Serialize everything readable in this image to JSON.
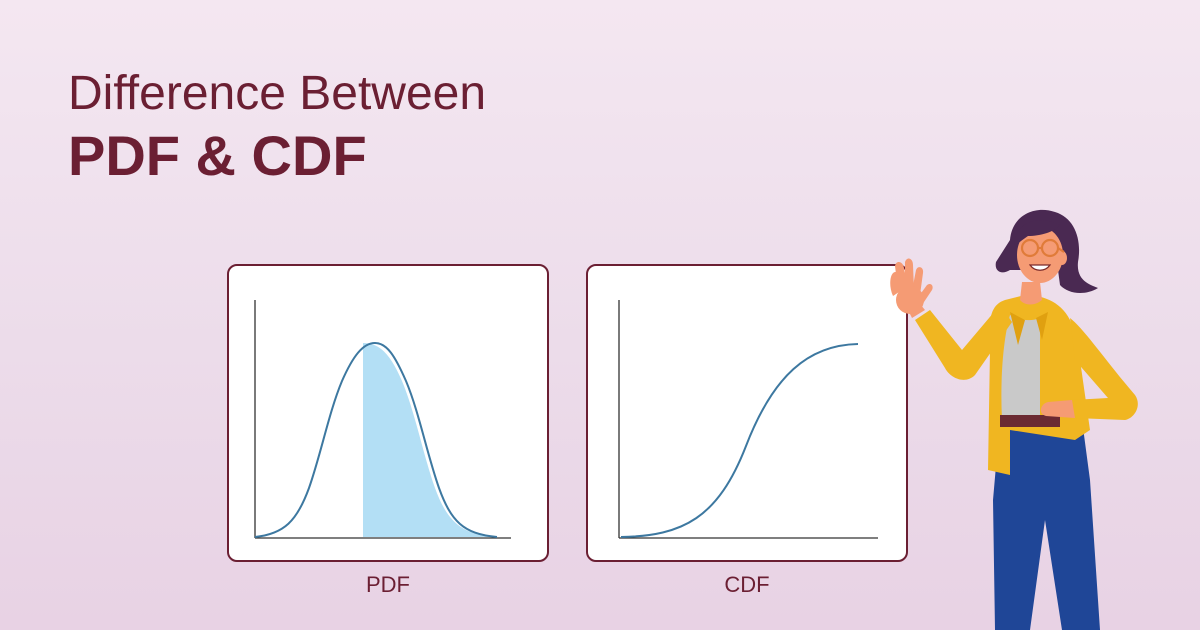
{
  "title": {
    "line1": "Difference Between",
    "line2": "PDF & CDF"
  },
  "figures": [
    {
      "caption": "PDF",
      "curve": "bell-curve",
      "shaded_region": "right half under curve",
      "fill_color": "#b3dff5",
      "line_color": "#3d78a0"
    },
    {
      "caption": "CDF",
      "curve": "s-curve",
      "line_color": "#3d78a0"
    }
  ],
  "illustration": {
    "subject": "woman presenter waving",
    "colors": {
      "jacket": "#f0b621",
      "pants": "#1f4697",
      "hair": "#4a2952",
      "skin": "#f59b74",
      "top": "#c9c9c9",
      "glasses": "#e07b39"
    }
  },
  "colors": {
    "title": "#6b1f33",
    "card_border": "#6b1f33",
    "axis": "#333333"
  }
}
